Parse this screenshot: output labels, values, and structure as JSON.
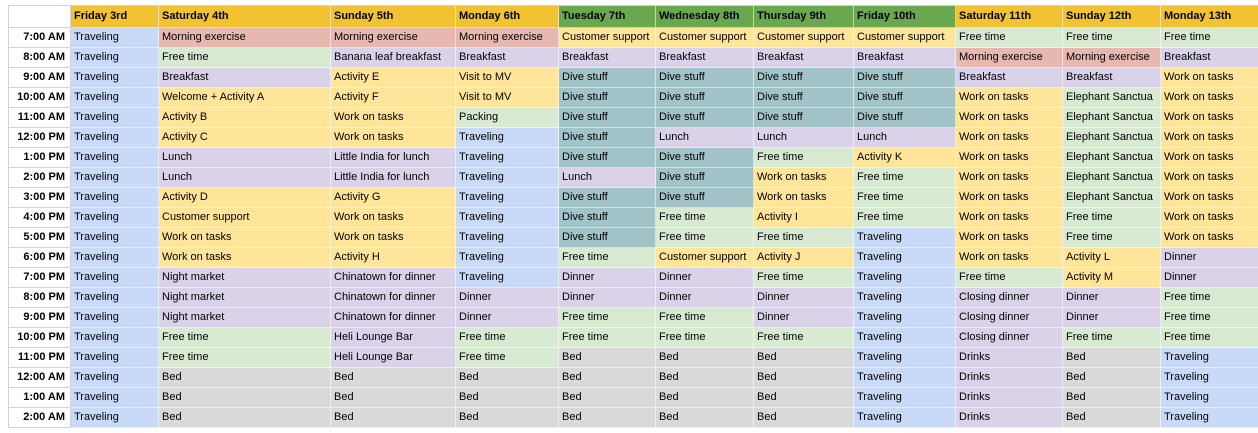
{
  "palette": {
    "headerYellow": "#f1c232",
    "headerGreen": "#6aa84f",
    "blue": "#c9daf8",
    "salmon": "#e6b8af",
    "green": "#d9ead3",
    "purple": "#d9d2e9",
    "yellow": "#ffe599",
    "teal": "#a2c4c9",
    "gray": "#d9d9d9",
    "white": "#ffffff"
  },
  "header": {
    "corner": "",
    "days": [
      {
        "label": "Friday 3rd",
        "color": "headerYellow"
      },
      {
        "label": "Saturday 4th",
        "color": "headerYellow"
      },
      {
        "label": "Sunday 5th",
        "color": "headerYellow"
      },
      {
        "label": "Monday 6th",
        "color": "headerYellow"
      },
      {
        "label": "Tuesday 7th",
        "color": "headerGreen"
      },
      {
        "label": "Wednesday 8th",
        "color": "headerGreen"
      },
      {
        "label": "Thursday 9th",
        "color": "headerGreen"
      },
      {
        "label": "Friday 10th",
        "color": "headerGreen"
      },
      {
        "label": "Saturday 11th",
        "color": "headerYellow"
      },
      {
        "label": "Sunday 12th",
        "color": "headerYellow"
      },
      {
        "label": "Monday 13th",
        "color": "headerYellow"
      }
    ]
  },
  "rows": [
    {
      "time": "7:00 AM",
      "cells": [
        [
          "Traveling",
          "blue"
        ],
        [
          "Morning exercise",
          "salmon"
        ],
        [
          "Morning exercise",
          "salmon"
        ],
        [
          "Morning exercise",
          "salmon"
        ],
        [
          "Customer support",
          "yellow"
        ],
        [
          "Customer support",
          "yellow"
        ],
        [
          "Customer support",
          "yellow"
        ],
        [
          "Customer support",
          "yellow"
        ],
        [
          "Free time",
          "green"
        ],
        [
          "Free time",
          "green"
        ],
        [
          "Free time",
          "green"
        ]
      ]
    },
    {
      "time": "8:00 AM",
      "cells": [
        [
          "Traveling",
          "blue"
        ],
        [
          "Free time",
          "green"
        ],
        [
          "Banana leaf breakfast",
          "purple"
        ],
        [
          "Breakfast",
          "purple"
        ],
        [
          "Breakfast",
          "purple"
        ],
        [
          "Breakfast",
          "purple"
        ],
        [
          "Breakfast",
          "purple"
        ],
        [
          "Breakfast",
          "purple"
        ],
        [
          "Morning exercise",
          "salmon"
        ],
        [
          "Morning exercise",
          "salmon"
        ],
        [
          "Breakfast",
          "purple"
        ]
      ]
    },
    {
      "time": "9:00 AM",
      "cells": [
        [
          "Traveling",
          "blue"
        ],
        [
          "Breakfast",
          "purple"
        ],
        [
          "Activity E",
          "yellow"
        ],
        [
          "Visit to MV",
          "yellow"
        ],
        [
          "Dive stuff",
          "teal"
        ],
        [
          "Dive stuff",
          "teal"
        ],
        [
          "Dive stuff",
          "teal"
        ],
        [
          "Dive stuff",
          "teal"
        ],
        [
          "Breakfast",
          "purple"
        ],
        [
          "Breakfast",
          "purple"
        ],
        [
          "Work on tasks",
          "yellow"
        ]
      ]
    },
    {
      "time": "10:00 AM",
      "cells": [
        [
          "Traveling",
          "blue"
        ],
        [
          "Welcome + Activity A",
          "yellow"
        ],
        [
          "Activity F",
          "yellow"
        ],
        [
          "Visit to MV",
          "yellow"
        ],
        [
          "Dive stuff",
          "teal"
        ],
        [
          "Dive stuff",
          "teal"
        ],
        [
          "Dive stuff",
          "teal"
        ],
        [
          "Dive stuff",
          "teal"
        ],
        [
          "Work on tasks",
          "yellow"
        ],
        [
          "Elephant Sanctua",
          "green"
        ],
        [
          "Work on tasks",
          "yellow"
        ]
      ]
    },
    {
      "time": "11:00 AM",
      "cells": [
        [
          "Traveling",
          "blue"
        ],
        [
          "Activity B",
          "yellow"
        ],
        [
          "Work on tasks",
          "yellow"
        ],
        [
          "Packing",
          "green"
        ],
        [
          "Dive stuff",
          "teal"
        ],
        [
          "Dive stuff",
          "teal"
        ],
        [
          "Dive stuff",
          "teal"
        ],
        [
          "Dive stuff",
          "teal"
        ],
        [
          "Work on tasks",
          "yellow"
        ],
        [
          "Elephant Sanctua",
          "green"
        ],
        [
          "Work on tasks",
          "yellow"
        ]
      ]
    },
    {
      "time": "12:00 PM",
      "cells": [
        [
          "Traveling",
          "blue"
        ],
        [
          "Activity C",
          "yellow"
        ],
        [
          "Work on tasks",
          "yellow"
        ],
        [
          "Traveling",
          "blue"
        ],
        [
          "Dive stuff",
          "teal"
        ],
        [
          "Lunch",
          "purple"
        ],
        [
          "Lunch",
          "purple"
        ],
        [
          "Lunch",
          "purple"
        ],
        [
          "Work on tasks",
          "yellow"
        ],
        [
          "Elephant Sanctua",
          "green"
        ],
        [
          "Work on tasks",
          "yellow"
        ]
      ]
    },
    {
      "time": "1:00 PM",
      "cells": [
        [
          "Traveling",
          "blue"
        ],
        [
          "Lunch",
          "purple"
        ],
        [
          "Little India for lunch",
          "purple"
        ],
        [
          "Traveling",
          "blue"
        ],
        [
          "Dive stuff",
          "teal"
        ],
        [
          "Dive stuff",
          "teal"
        ],
        [
          "Free time",
          "green"
        ],
        [
          "Activity K",
          "yellow"
        ],
        [
          "Work on tasks",
          "yellow"
        ],
        [
          "Elephant Sanctua",
          "green"
        ],
        [
          "Work on tasks",
          "yellow"
        ]
      ]
    },
    {
      "time": "2:00 PM",
      "cells": [
        [
          "Traveling",
          "blue"
        ],
        [
          "Lunch",
          "purple"
        ],
        [
          "Little India for lunch",
          "purple"
        ],
        [
          "Traveling",
          "blue"
        ],
        [
          "Lunch",
          "purple"
        ],
        [
          "Dive stuff",
          "teal"
        ],
        [
          "Work on tasks",
          "yellow"
        ],
        [
          "Free time",
          "green"
        ],
        [
          "Work on tasks",
          "yellow"
        ],
        [
          "Elephant Sanctua",
          "green"
        ],
        [
          "Work on tasks",
          "yellow"
        ]
      ]
    },
    {
      "time": "3:00 PM",
      "cells": [
        [
          "Traveling",
          "blue"
        ],
        [
          "Activity D",
          "yellow"
        ],
        [
          "Activity G",
          "yellow"
        ],
        [
          "Traveling",
          "blue"
        ],
        [
          "Dive stuff",
          "teal"
        ],
        [
          "Dive stuff",
          "teal"
        ],
        [
          "Work on tasks",
          "yellow"
        ],
        [
          "Free time",
          "green"
        ],
        [
          "Work on tasks",
          "yellow"
        ],
        [
          "Elephant Sanctua",
          "green"
        ],
        [
          "Work on tasks",
          "yellow"
        ]
      ]
    },
    {
      "time": "4:00 PM",
      "cells": [
        [
          "Traveling",
          "blue"
        ],
        [
          "Customer support",
          "yellow"
        ],
        [
          "Work on tasks",
          "yellow"
        ],
        [
          "Traveling",
          "blue"
        ],
        [
          "Dive stuff",
          "teal"
        ],
        [
          "Free time",
          "green"
        ],
        [
          "Activity I",
          "yellow"
        ],
        [
          "Free time",
          "green"
        ],
        [
          "Work on tasks",
          "yellow"
        ],
        [
          "Free time",
          "green"
        ],
        [
          "Work on tasks",
          "yellow"
        ]
      ]
    },
    {
      "time": "5:00 PM",
      "cells": [
        [
          "Traveling",
          "blue"
        ],
        [
          "Work on tasks",
          "yellow"
        ],
        [
          "Work on tasks",
          "yellow"
        ],
        [
          "Traveling",
          "blue"
        ],
        [
          "Dive stuff",
          "teal"
        ],
        [
          "Free time",
          "green"
        ],
        [
          "Free time",
          "green"
        ],
        [
          "Traveling",
          "blue"
        ],
        [
          "Work on tasks",
          "yellow"
        ],
        [
          "Free time",
          "green"
        ],
        [
          "Work on tasks",
          "yellow"
        ]
      ]
    },
    {
      "time": "6:00 PM",
      "cells": [
        [
          "Traveling",
          "blue"
        ],
        [
          "Work on tasks",
          "yellow"
        ],
        [
          "Activity H",
          "yellow"
        ],
        [
          "Traveling",
          "blue"
        ],
        [
          "Free time",
          "green"
        ],
        [
          "Customer support",
          "yellow"
        ],
        [
          "Activity J",
          "yellow"
        ],
        [
          "Traveling",
          "blue"
        ],
        [
          "Work on tasks",
          "yellow"
        ],
        [
          "Activity L",
          "yellow"
        ],
        [
          "Dinner",
          "purple"
        ]
      ]
    },
    {
      "time": "7:00 PM",
      "cells": [
        [
          "Traveling",
          "blue"
        ],
        [
          "Night market",
          "purple"
        ],
        [
          "Chinatown for dinner",
          "purple"
        ],
        [
          "Traveling",
          "blue"
        ],
        [
          "Dinner",
          "purple"
        ],
        [
          "Dinner",
          "purple"
        ],
        [
          "Free time",
          "green"
        ],
        [
          "Traveling",
          "blue"
        ],
        [
          "Free time",
          "green"
        ],
        [
          "Activity M",
          "yellow"
        ],
        [
          "Dinner",
          "purple"
        ]
      ]
    },
    {
      "time": "8:00 PM",
      "cells": [
        [
          "Traveling",
          "blue"
        ],
        [
          "Night market",
          "purple"
        ],
        [
          "Chinatown for dinner",
          "purple"
        ],
        [
          "Dinner",
          "purple"
        ],
        [
          "Dinner",
          "purple"
        ],
        [
          "Dinner",
          "purple"
        ],
        [
          "Dinner",
          "purple"
        ],
        [
          "Traveling",
          "blue"
        ],
        [
          "Closing dinner",
          "purple"
        ],
        [
          "Dinner",
          "purple"
        ],
        [
          "Free time",
          "green"
        ]
      ]
    },
    {
      "time": "9:00 PM",
      "cells": [
        [
          "Traveling",
          "blue"
        ],
        [
          "Night market",
          "purple"
        ],
        [
          "Chinatown for dinner",
          "purple"
        ],
        [
          "Dinner",
          "purple"
        ],
        [
          "Free time",
          "green"
        ],
        [
          "Free time",
          "green"
        ],
        [
          "Dinner",
          "purple"
        ],
        [
          "Traveling",
          "blue"
        ],
        [
          "Closing dinner",
          "purple"
        ],
        [
          "Dinner",
          "purple"
        ],
        [
          "Free time",
          "green"
        ]
      ]
    },
    {
      "time": "10:00 PM",
      "cells": [
        [
          "Traveling",
          "blue"
        ],
        [
          "Free time",
          "green"
        ],
        [
          "Heli Lounge Bar",
          "purple"
        ],
        [
          "Free time",
          "green"
        ],
        [
          "Free time",
          "green"
        ],
        [
          "Free time",
          "green"
        ],
        [
          "Free time",
          "green"
        ],
        [
          "Traveling",
          "blue"
        ],
        [
          "Closing dinner",
          "purple"
        ],
        [
          "Free time",
          "green"
        ],
        [
          "Free time",
          "green"
        ]
      ]
    },
    {
      "time": "11:00 PM",
      "cells": [
        [
          "Traveling",
          "blue"
        ],
        [
          "Free time",
          "green"
        ],
        [
          "Heli Lounge Bar",
          "purple"
        ],
        [
          "Free time",
          "green"
        ],
        [
          "Bed",
          "gray"
        ],
        [
          "Bed",
          "gray"
        ],
        [
          "Bed",
          "gray"
        ],
        [
          "Traveling",
          "blue"
        ],
        [
          "Drinks",
          "purple"
        ],
        [
          "Bed",
          "gray"
        ],
        [
          "Traveling",
          "blue"
        ]
      ]
    },
    {
      "time": "12:00 AM",
      "cells": [
        [
          "Traveling",
          "blue"
        ],
        [
          "Bed",
          "gray"
        ],
        [
          "Bed",
          "gray"
        ],
        [
          "Bed",
          "gray"
        ],
        [
          "Bed",
          "gray"
        ],
        [
          "Bed",
          "gray"
        ],
        [
          "Bed",
          "gray"
        ],
        [
          "Traveling",
          "blue"
        ],
        [
          "Drinks",
          "purple"
        ],
        [
          "Bed",
          "gray"
        ],
        [
          "Traveling",
          "blue"
        ]
      ]
    },
    {
      "time": "1:00 AM",
      "cells": [
        [
          "Traveling",
          "blue"
        ],
        [
          "Bed",
          "gray"
        ],
        [
          "Bed",
          "gray"
        ],
        [
          "Bed",
          "gray"
        ],
        [
          "Bed",
          "gray"
        ],
        [
          "Bed",
          "gray"
        ],
        [
          "Bed",
          "gray"
        ],
        [
          "Traveling",
          "blue"
        ],
        [
          "Drinks",
          "purple"
        ],
        [
          "Bed",
          "gray"
        ],
        [
          "Traveling",
          "blue"
        ]
      ]
    },
    {
      "time": "2:00 AM",
      "cells": [
        [
          "Traveling",
          "blue"
        ],
        [
          "Bed",
          "gray"
        ],
        [
          "Bed",
          "gray"
        ],
        [
          "Bed",
          "gray"
        ],
        [
          "Bed",
          "gray"
        ],
        [
          "Bed",
          "gray"
        ],
        [
          "Bed",
          "gray"
        ],
        [
          "Traveling",
          "blue"
        ],
        [
          "Drinks",
          "purple"
        ],
        [
          "Bed",
          "gray"
        ],
        [
          "Traveling",
          "blue"
        ]
      ]
    }
  ]
}
